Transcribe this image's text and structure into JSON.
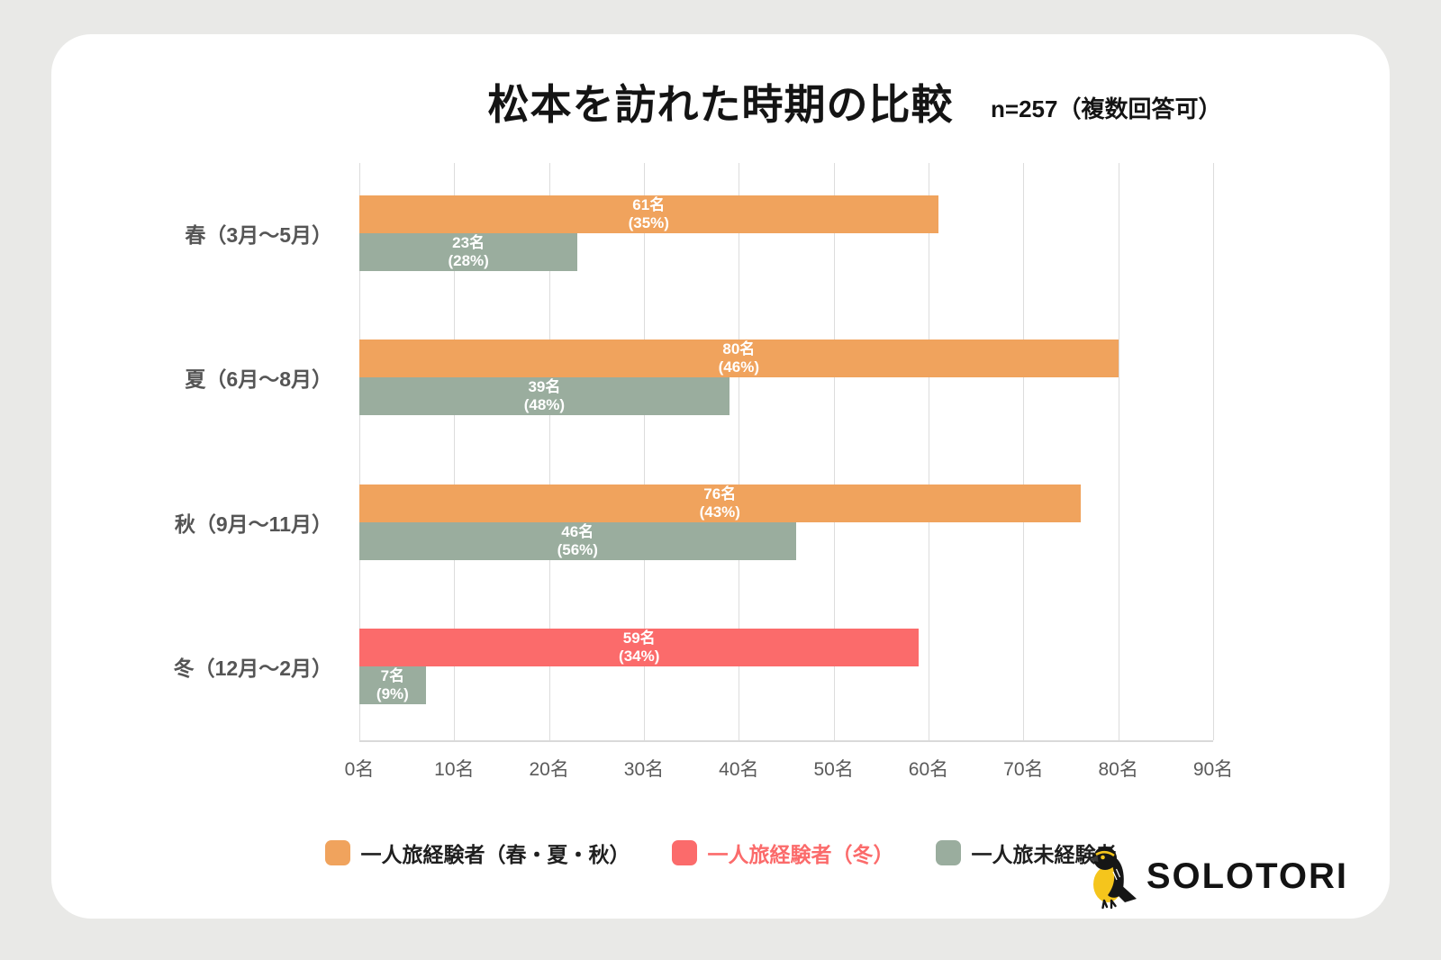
{
  "colors": {
    "page_background": "#E9E9E7",
    "card_background": "#FFFFFF",
    "title_text": "#141414",
    "axis_text": "#5A5A5A",
    "category_text": "#555555",
    "gridline": "#DCDCDC",
    "bar_label_text": "#FFFFFF"
  },
  "header": {
    "title": "松本を訪れた時期の比較",
    "sample_note": "n=257（複数回答可）"
  },
  "chart_data": {
    "type": "bar",
    "orientation": "horizontal",
    "title": "松本を訪れた時期の比較",
    "sample_note": "n=257（複数回答可）",
    "grid": true,
    "legend_position": "bottom",
    "x_axis": {
      "min": 0,
      "max": 90,
      "tick_step": 10,
      "unit": "名",
      "tick_labels": [
        "0名",
        "10名",
        "20名",
        "30名",
        "40名",
        "50名",
        "60名",
        "70名",
        "80名",
        "90名"
      ]
    },
    "categories": [
      "春（3月～5月）",
      "夏（6月～8月）",
      "秋（9月～11月）",
      "冬（12月～2月）"
    ],
    "series_colors": {
      "solo_experienced": "#F0A35D",
      "solo_experienced_winter": "#FB6B6B",
      "solo_inexperienced": "#9AAD9E"
    },
    "groups": [
      {
        "category": "春（3月～5月）",
        "bars": [
          {
            "series": "solo_experienced",
            "value": 61,
            "count_label": "61名",
            "percent_label": "(35%)"
          },
          {
            "series": "solo_inexperienced",
            "value": 23,
            "count_label": "23名",
            "percent_label": "(28%)"
          }
        ]
      },
      {
        "category": "夏（6月～8月）",
        "bars": [
          {
            "series": "solo_experienced",
            "value": 80,
            "count_label": "80名",
            "percent_label": "(46%)"
          },
          {
            "series": "solo_inexperienced",
            "value": 39,
            "count_label": "39名",
            "percent_label": "(48%)"
          }
        ]
      },
      {
        "category": "秋（9月～11月）",
        "bars": [
          {
            "series": "solo_experienced",
            "value": 76,
            "count_label": "76名",
            "percent_label": "(43%)"
          },
          {
            "series": "solo_inexperienced",
            "value": 46,
            "count_label": "46名",
            "percent_label": "(56%)"
          }
        ]
      },
      {
        "category": "冬（12月～2月）",
        "bars": [
          {
            "series": "solo_experienced_winter",
            "value": 59,
            "count_label": "59名",
            "percent_label": "(34%)"
          },
          {
            "series": "solo_inexperienced",
            "value": 7,
            "count_label": "7名",
            "percent_label": "(9%)"
          }
        ]
      }
    ]
  },
  "legend": {
    "items": [
      {
        "series": "solo_experienced",
        "label": "一人旅経験者（春・夏・秋）",
        "swatch_color": "#F0A35D",
        "text_color": "#1F1F1F",
        "emphasis": false
      },
      {
        "series": "solo_experienced_winter",
        "label": "一人旅経験者（冬）",
        "swatch_color": "#FB6B6B",
        "text_color": "#FB6B6B",
        "emphasis": true
      },
      {
        "series": "solo_inexperienced",
        "label": "一人旅未経験者",
        "swatch_color": "#9AAD9E",
        "text_color": "#1F1F1F",
        "emphasis": false
      }
    ]
  },
  "logo": {
    "text": "SOLOTORI",
    "icon": "bird-icon",
    "bird_body_color": "#F5C51C",
    "bird_dark_color": "#161616"
  }
}
